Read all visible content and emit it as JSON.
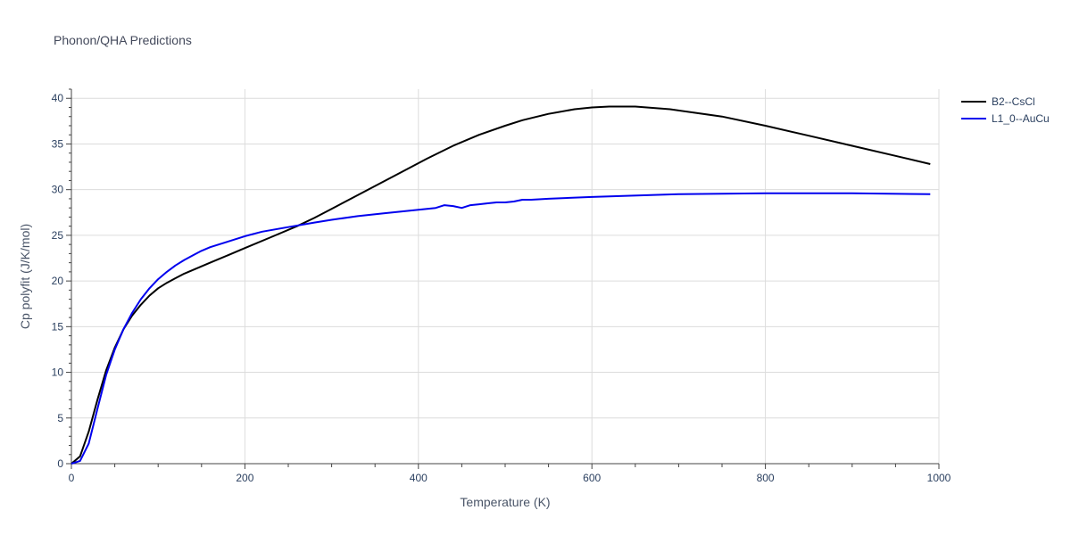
{
  "chart_data": {
    "type": "line",
    "title": "Phonon/QHA Predictions",
    "xlabel": "Temperature (K)",
    "ylabel": "Cp polyfit (J/K/mol)",
    "xlim": [
      0,
      1000
    ],
    "ylim": [
      0,
      41
    ],
    "xticks": [
      0,
      200,
      400,
      600,
      800,
      1000
    ],
    "yticks": [
      0,
      5,
      10,
      15,
      20,
      25,
      30,
      35,
      40
    ],
    "grid": true,
    "legend_position": "top-right",
    "series": [
      {
        "name": "B2--CsCl",
        "color": "#000000",
        "x": [
          0,
          10,
          20,
          30,
          40,
          50,
          60,
          70,
          80,
          90,
          100,
          110,
          120,
          130,
          140,
          160,
          180,
          200,
          230,
          260,
          280,
          300,
          320,
          350,
          380,
          410,
          440,
          470,
          500,
          520,
          550,
          580,
          600,
          620,
          650,
          690,
          720,
          750,
          800,
          850,
          900,
          950,
          990
        ],
        "y": [
          0,
          0.8,
          3.5,
          7.0,
          10.2,
          12.7,
          14.7,
          16.2,
          17.4,
          18.4,
          19.2,
          19.8,
          20.3,
          20.8,
          21.2,
          22.0,
          22.8,
          23.6,
          24.8,
          26.0,
          26.9,
          27.9,
          28.9,
          30.4,
          31.9,
          33.4,
          34.8,
          36.0,
          37.0,
          37.6,
          38.3,
          38.8,
          39.0,
          39.1,
          39.1,
          38.8,
          38.4,
          38.0,
          37.0,
          35.9,
          34.8,
          33.7,
          32.8
        ]
      },
      {
        "name": "L1_0--AuCu",
        "color": "#0000ee",
        "x": [
          0,
          10,
          20,
          30,
          40,
          50,
          60,
          70,
          80,
          90,
          100,
          110,
          120,
          130,
          140,
          150,
          160,
          180,
          200,
          220,
          250,
          280,
          300,
          330,
          360,
          390,
          420,
          430,
          440,
          450,
          460,
          470,
          480,
          490,
          500,
          510,
          520,
          530,
          550,
          600,
          700,
          800,
          900,
          990
        ],
        "y": [
          0,
          0.3,
          2.2,
          6.0,
          9.7,
          12.5,
          14.7,
          16.5,
          18.0,
          19.2,
          20.2,
          21.0,
          21.7,
          22.3,
          22.8,
          23.3,
          23.7,
          24.3,
          24.9,
          25.4,
          25.9,
          26.4,
          26.7,
          27.1,
          27.4,
          27.7,
          28.0,
          28.3,
          28.2,
          28.0,
          28.3,
          28.4,
          28.5,
          28.6,
          28.6,
          28.7,
          28.9,
          28.9,
          29.0,
          29.2,
          29.5,
          29.6,
          29.6,
          29.5
        ]
      }
    ]
  }
}
